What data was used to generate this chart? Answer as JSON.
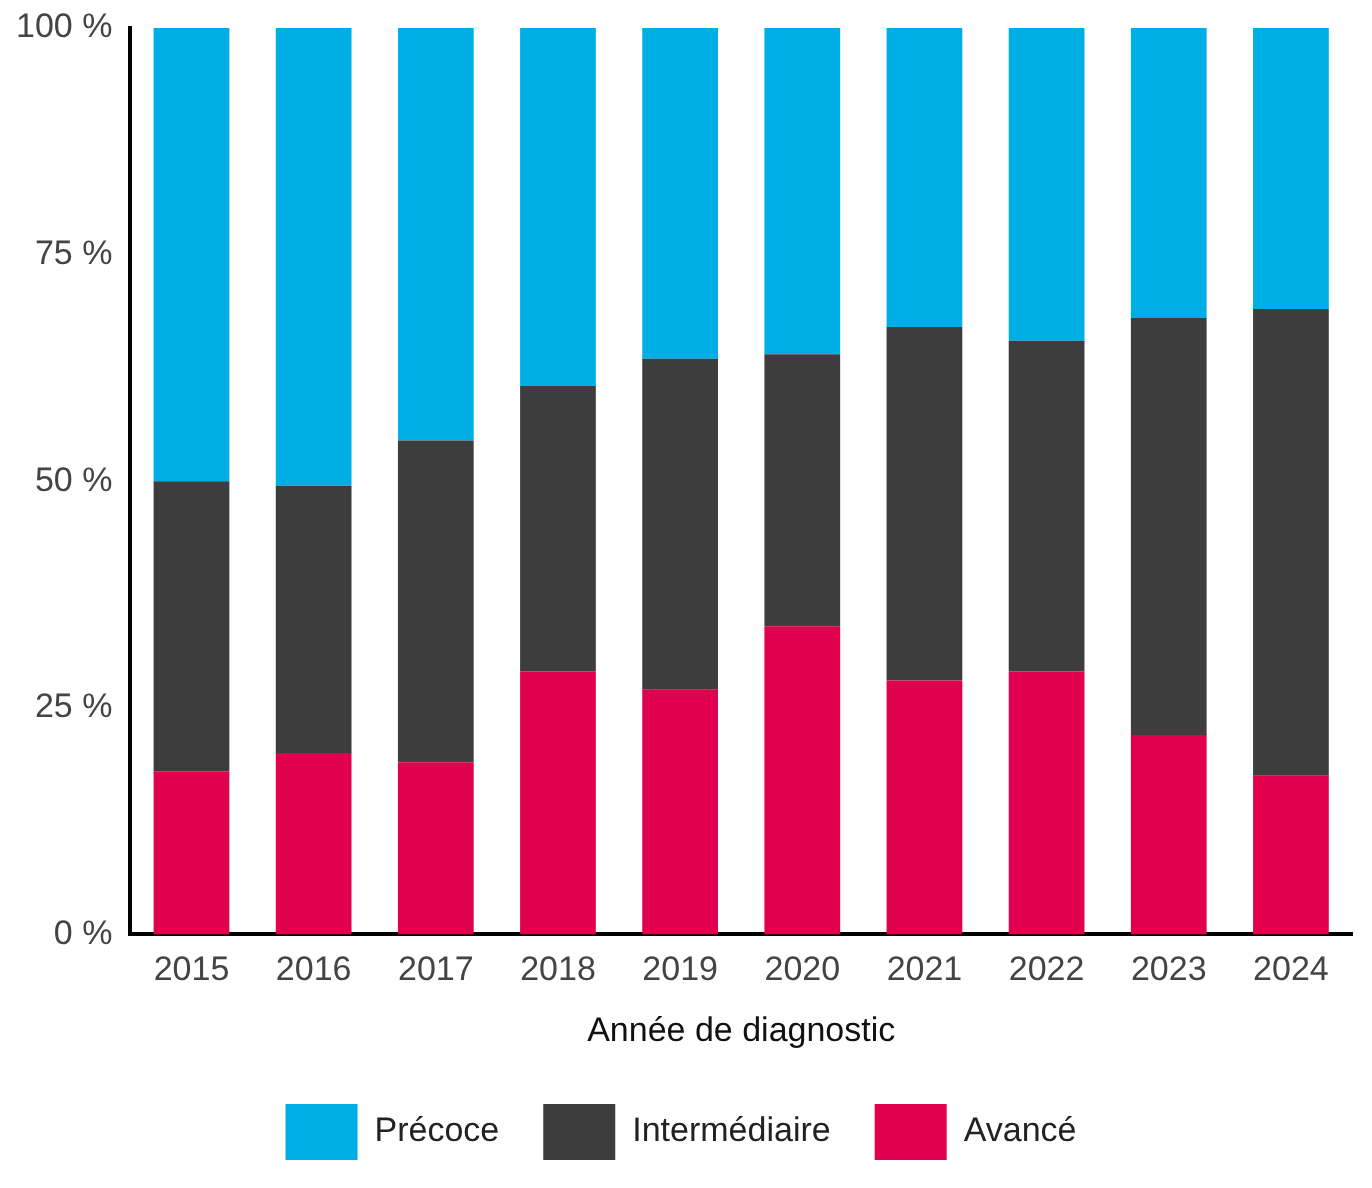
{
  "chart_data": {
    "type": "bar",
    "stacked": true,
    "xlabel": "Année de diagnostic",
    "categories": [
      "2015",
      "2016",
      "2017",
      "2018",
      "2019",
      "2020",
      "2021",
      "2022",
      "2023",
      "2024"
    ],
    "series": [
      {
        "name": "Avancé",
        "color": "#e0004d",
        "values": [
          18,
          20,
          19,
          29,
          27,
          34,
          28,
          29,
          22,
          17.5
        ]
      },
      {
        "name": "Intermédiaire",
        "color": "#3d3d3d",
        "values": [
          32,
          29.5,
          35.5,
          31.5,
          36.5,
          30,
          39,
          36.5,
          46,
          51.5
        ]
      },
      {
        "name": "Précoce",
        "color": "#00aee6",
        "values": [
          50,
          50.5,
          45.5,
          39.5,
          36.5,
          36,
          33,
          34.5,
          32,
          31
        ]
      }
    ],
    "ylim": [
      0,
      100
    ],
    "yticks": [
      {
        "value": 0,
        "label": "0 %"
      },
      {
        "value": 25,
        "label": "25 %"
      },
      {
        "value": 50,
        "label": "50 %"
      },
      {
        "value": 75,
        "label": "75 %"
      },
      {
        "value": 100,
        "label": "100 %"
      }
    ],
    "grid": false,
    "legend": "bottom"
  }
}
